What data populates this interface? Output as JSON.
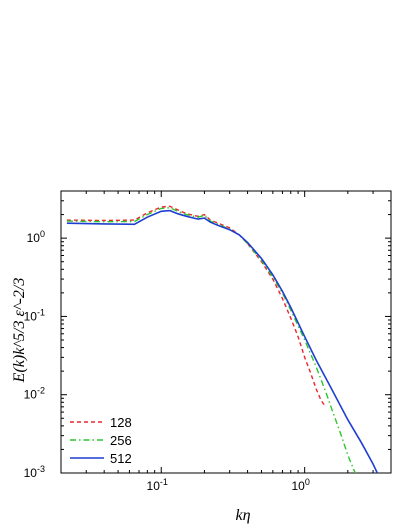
{
  "chart_data": {
    "type": "line",
    "xscale": "log",
    "yscale": "log",
    "xlim": [
      0.02,
      4.0
    ],
    "ylim": [
      0.001,
      4.0
    ],
    "xticks": [
      {
        "v": 0.1,
        "b": "10",
        "e": "-1"
      },
      {
        "v": 1,
        "b": "10",
        "e": "0"
      }
    ],
    "yticks": [
      {
        "v": 0.001,
        "b": "10",
        "e": "-3"
      },
      {
        "v": 0.01,
        "b": "10",
        "e": "-2"
      },
      {
        "v": 0.1,
        "b": "10",
        "e": "-1"
      },
      {
        "v": 1,
        "b": "10",
        "e": "0"
      }
    ],
    "xlabel": "kη",
    "ylabel": "E(k)k^5/3 ε^-2/3",
    "legend_position": "bottom-left",
    "series": [
      {
        "name": "128",
        "color": "#e8262a",
        "dash": "dashed",
        "x": [
          0.022,
          0.04,
          0.065,
          0.08,
          0.1,
          0.115,
          0.13,
          0.15,
          0.18,
          0.2,
          0.22,
          0.25,
          0.3,
          0.35,
          0.4,
          0.5,
          0.6,
          0.7,
          0.8,
          0.9,
          1.0,
          1.1,
          1.2,
          1.3,
          1.4
        ],
        "y": [
          1.7,
          1.68,
          1.7,
          2.1,
          2.5,
          2.55,
          2.3,
          2.05,
          1.9,
          2.0,
          1.7,
          1.55,
          1.35,
          1.1,
          0.85,
          0.5,
          0.3,
          0.17,
          0.095,
          0.055,
          0.03,
          0.019,
          0.012,
          0.0085,
          0.007
        ]
      },
      {
        "name": "256",
        "color": "#2ec52e",
        "dash": "dashdot",
        "x": [
          0.022,
          0.04,
          0.065,
          0.08,
          0.1,
          0.115,
          0.13,
          0.15,
          0.18,
          0.2,
          0.22,
          0.25,
          0.3,
          0.35,
          0.4,
          0.5,
          0.6,
          0.7,
          0.8,
          1.0,
          1.2,
          1.4,
          1.6,
          1.8,
          2.0,
          2.2,
          2.4
        ],
        "y": [
          1.65,
          1.62,
          1.63,
          2.0,
          2.4,
          2.45,
          2.2,
          2.0,
          1.85,
          1.95,
          1.65,
          1.5,
          1.3,
          1.1,
          0.85,
          0.52,
          0.32,
          0.2,
          0.12,
          0.05,
          0.023,
          0.011,
          0.0055,
          0.003,
          0.0017,
          0.0011,
          0.0008
        ]
      },
      {
        "name": "512",
        "color": "#1f3fd0",
        "dash": "solid",
        "x": [
          0.022,
          0.04,
          0.065,
          0.08,
          0.1,
          0.115,
          0.13,
          0.15,
          0.18,
          0.2,
          0.22,
          0.25,
          0.3,
          0.35,
          0.4,
          0.5,
          0.6,
          0.7,
          0.8,
          1.0,
          1.2,
          1.5,
          2.0,
          2.5,
          3.0,
          3.3
        ],
        "y": [
          1.55,
          1.52,
          1.5,
          1.85,
          2.2,
          2.25,
          2.05,
          1.9,
          1.75,
          1.8,
          1.6,
          1.45,
          1.28,
          1.1,
          0.88,
          0.55,
          0.34,
          0.21,
          0.13,
          0.055,
          0.028,
          0.013,
          0.0048,
          0.0024,
          0.0013,
          0.0009
        ]
      }
    ]
  }
}
